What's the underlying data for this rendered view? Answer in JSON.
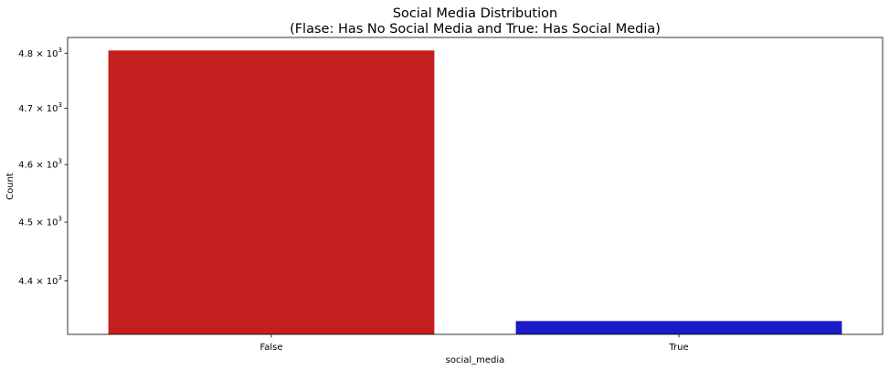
{
  "chart_data": {
    "type": "bar",
    "title": "Social Media Distribution",
    "subtitle": "(Flase: Has No Social Media  and  True: Has Social Media)",
    "xlabel": "social_media",
    "ylabel": "Count",
    "categories": [
      "False",
      "True"
    ],
    "values": [
      4805,
      4333
    ],
    "colors": [
      "#c41e1e",
      "#1a1ac8"
    ],
    "yscale": "log",
    "ylim": [
      4311,
      4829
    ],
    "yticks": [
      4400,
      4500,
      4600,
      4700,
      4800
    ],
    "ytick_labels": [
      {
        "base": "4.4",
        "exp": "3"
      },
      {
        "base": "4.5",
        "exp": "3"
      },
      {
        "base": "4.6",
        "exp": "3"
      },
      {
        "base": "4.7",
        "exp": "3"
      },
      {
        "base": "4.8",
        "exp": "3"
      }
    ],
    "grid": false
  }
}
